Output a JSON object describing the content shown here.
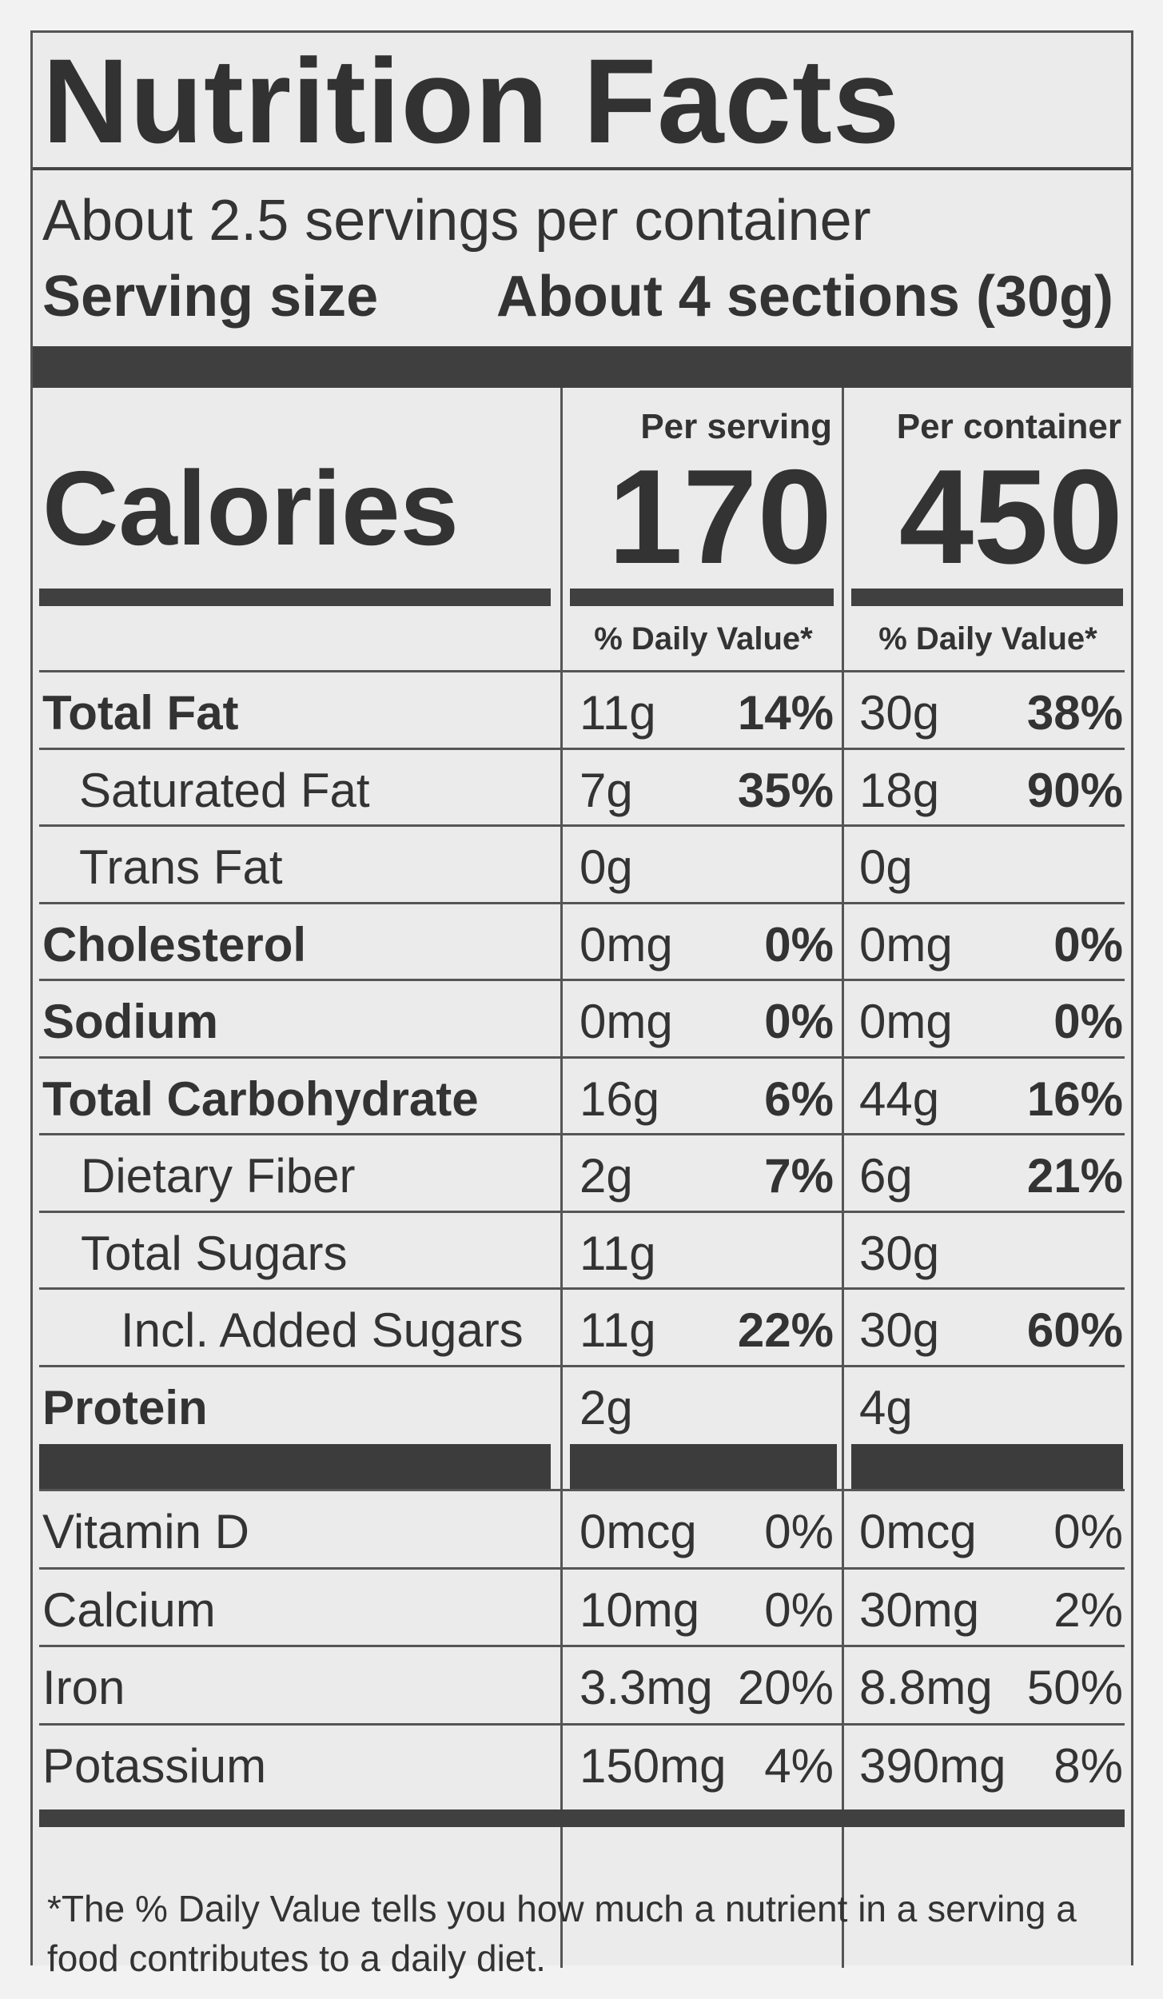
{
  "title": "Nutrition Facts",
  "servings_per_container": "About 2.5 servings per container",
  "serving_size_label": "Serving size",
  "serving_size_value": "About 4 sections (30g)",
  "calories_label": "Calories",
  "columns": [
    {
      "header": "Per serving",
      "calories": "170",
      "dv_label": "% Daily Value*"
    },
    {
      "header": "Per container",
      "calories": "450",
      "dv_label": "% Daily Value*"
    }
  ],
  "nutrients": [
    {
      "name": "Total Fat",
      "serving_amt": "11g",
      "serving_pct": "14%",
      "container_amt": "30g",
      "container_pct": "38%"
    },
    {
      "name": "Saturated Fat",
      "serving_amt": "7g",
      "serving_pct": "35%",
      "container_amt": "18g",
      "container_pct": "90%"
    },
    {
      "name": "Trans Fat",
      "serving_amt": "0g",
      "serving_pct": "",
      "container_amt": "0g",
      "container_pct": ""
    },
    {
      "name": "Cholesterol",
      "serving_amt": "0mg",
      "serving_pct": "0%",
      "container_amt": "0mg",
      "container_pct": "0%"
    },
    {
      "name": "Sodium",
      "serving_amt": "0mg",
      "serving_pct": "0%",
      "container_amt": "0mg",
      "container_pct": "0%"
    },
    {
      "name": "Total Carbohydrate",
      "serving_amt": "16g",
      "serving_pct": "6%",
      "container_amt": "44g",
      "container_pct": "16%"
    },
    {
      "name": "Dietary Fiber",
      "serving_amt": "2g",
      "serving_pct": "7%",
      "container_amt": "6g",
      "container_pct": "21%"
    },
    {
      "name": "Total Sugars",
      "serving_amt": "11g",
      "serving_pct": "",
      "container_amt": "30g",
      "container_pct": ""
    },
    {
      "name": "Incl. Added Sugars",
      "serving_amt": "11g",
      "serving_pct": "22%",
      "container_amt": "30g",
      "container_pct": "60%"
    },
    {
      "name": "Protein",
      "serving_amt": "2g",
      "serving_pct": "",
      "container_amt": "4g",
      "container_pct": ""
    }
  ],
  "vitamins": [
    {
      "name": "Vitamin D",
      "serving_amt": "0mcg",
      "serving_pct": "0%",
      "container_amt": "0mcg",
      "container_pct": "0%"
    },
    {
      "name": "Calcium",
      "serving_amt": "10mg",
      "serving_pct": "0%",
      "container_amt": "30mg",
      "container_pct": "2%"
    },
    {
      "name": "Iron",
      "serving_amt": "3.3mg",
      "serving_pct": "20%",
      "container_amt": "8.8mg",
      "container_pct": "50%"
    },
    {
      "name": "Potassium",
      "serving_amt": "150mg",
      "serving_pct": "4%",
      "container_amt": "390mg",
      "container_pct": "8%"
    }
  ],
  "footnote": "*The % Daily Value tells you how much a nutrient in a serving a food contributes to a daily diet."
}
